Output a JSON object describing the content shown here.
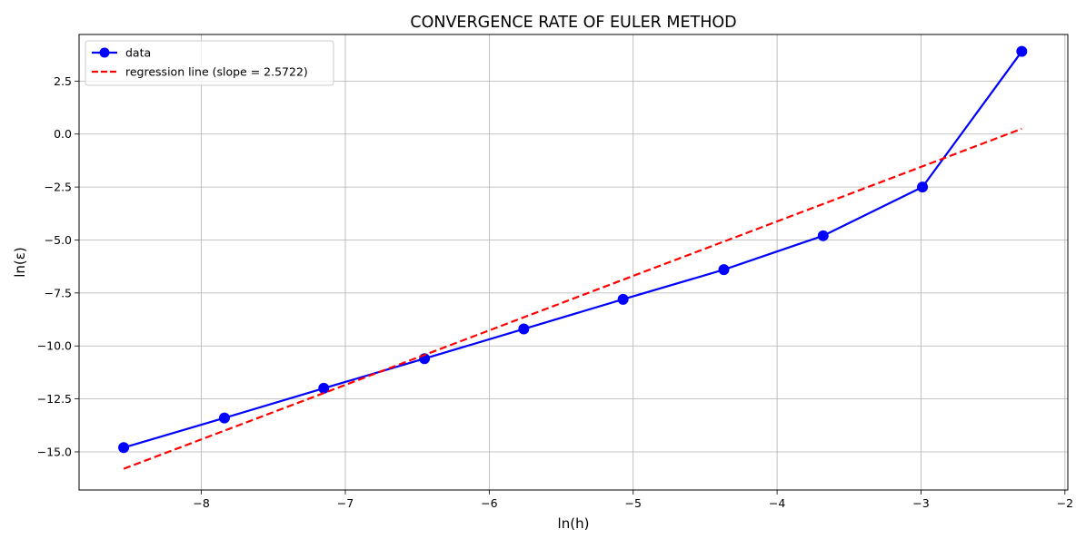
{
  "chart_data": {
    "type": "line",
    "title": "CONVERGENCE RATE OF EULER METHOD",
    "xlabel": "ln(h)",
    "ylabel": "ln(ε)",
    "xlim": [
      -8.85,
      -1.98
    ],
    "ylim": [
      -16.8,
      4.7
    ],
    "xticks": [
      -8,
      -7,
      -6,
      -5,
      -4,
      -3,
      -2
    ],
    "xtick_labels": [
      "−8",
      "−7",
      "−6",
      "−5",
      "−4",
      "−3",
      "−2"
    ],
    "yticks": [
      -15.0,
      -12.5,
      -10.0,
      -7.5,
      -5.0,
      -2.5,
      0.0,
      2.5
    ],
    "ytick_labels": [
      "−15.0",
      "−12.5",
      "−10.0",
      "−7.5",
      "−5.0",
      "−2.5",
      "0.0",
      "2.5"
    ],
    "grid": true,
    "legend_position": "top-left",
    "series": [
      {
        "name": "data",
        "style": "solid line with circle markers",
        "color": "#0000ff",
        "x": [
          -8.54,
          -7.84,
          -7.15,
          -6.45,
          -5.76,
          -5.07,
          -4.37,
          -3.68,
          -2.99,
          -2.3
        ],
        "y": [
          -14.8,
          -13.4,
          -12.0,
          -10.6,
          -9.2,
          -7.8,
          -6.4,
          -4.8,
          -2.5,
          3.9
        ]
      },
      {
        "name": "regression line (slope = 2.5722)",
        "style": "dashed line",
        "color": "#ff0000",
        "x": [
          -8.54,
          -2.3
        ],
        "y": [
          -15.8,
          0.25
        ]
      }
    ]
  }
}
